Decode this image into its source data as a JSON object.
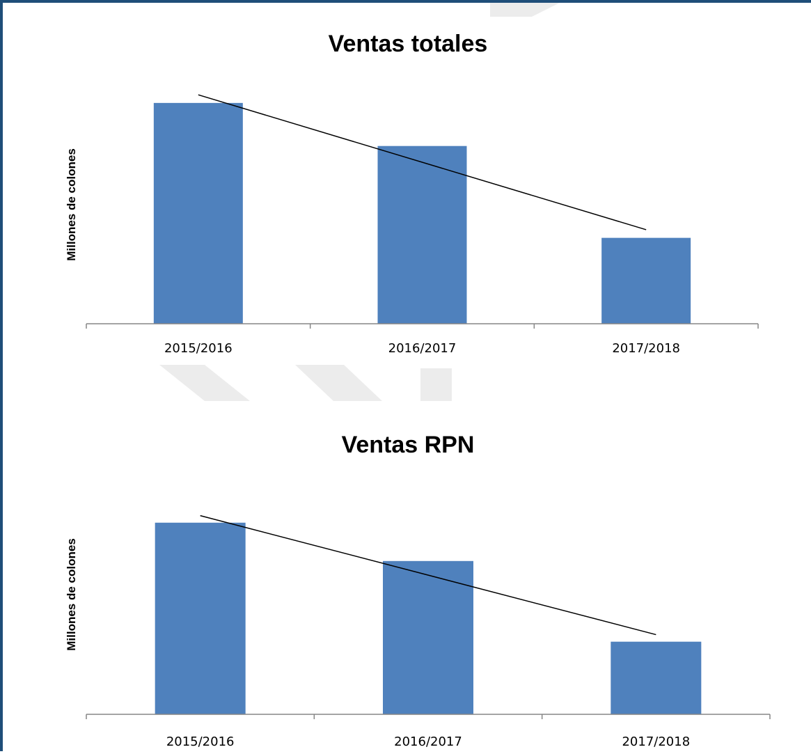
{
  "colors": {
    "bar": "#4f81bd",
    "frame": "#1f4e79",
    "trendline": "#000000",
    "axis": "#868686",
    "watermark": "#d9d9d9"
  },
  "chart_data": [
    {
      "type": "bar",
      "title": "Ventas totales",
      "ylabel": "Millones de colones",
      "xlabel": "",
      "categories": [
        "2015/2016",
        "2016/2017",
        "2017/2018"
      ],
      "values": [
        1.0,
        0.805,
        0.389
      ],
      "ylim": [
        0,
        1.05
      ],
      "y_tick_labels_shown": false,
      "grid": false,
      "legend": "none",
      "trendline": "linear"
    },
    {
      "type": "bar",
      "title": "Ventas RPN",
      "ylabel": "Millones de colones",
      "xlabel": "",
      "categories": [
        "2015/2016",
        "2016/2017",
        "2017/2018"
      ],
      "values": [
        1.0,
        0.8,
        0.379
      ],
      "ylim": [
        0,
        1.05
      ],
      "y_tick_labels_shown": false,
      "grid": false,
      "legend": "none",
      "trendline": "linear"
    }
  ]
}
